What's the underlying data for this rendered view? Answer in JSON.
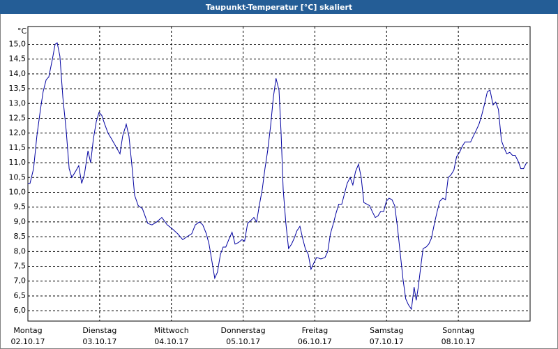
{
  "chart_data": {
    "type": "line",
    "title": "Taupunkt-Temperatur [°C] skaliert",
    "y_unit": "°C",
    "x": [
      0,
      0.7,
      1.9,
      3.0,
      4.2,
      5.1,
      6.1,
      7.0,
      8.2,
      9.1,
      9.8,
      10.7,
      11.7,
      12.8,
      13.8,
      14.7,
      15.9,
      17.0,
      18.0,
      18.9,
      20.1,
      21.0,
      21.9,
      22.9,
      23.8,
      24.7,
      25.7,
      26.8,
      28.0,
      29.4,
      30.8,
      31.7,
      32.9,
      33.8,
      34.8,
      35.7,
      36.9,
      38.3,
      39.2,
      40.1,
      41.5,
      43.1,
      44.8,
      46.6,
      48.5,
      50.1,
      51.8,
      53.2,
      54.8,
      56.0,
      57.4,
      58.5,
      59.7,
      60.6,
      61.6,
      62.5,
      63.4,
      64.4,
      65.3,
      66.2,
      67.4,
      68.3,
      69.3,
      70.4,
      71.6,
      72.5,
      73.5,
      74.6,
      75.6,
      76.5,
      77.4,
      78.4,
      79.3,
      80.2,
      81.2,
      82.1,
      83.0,
      84.0,
      84.7,
      85.4,
      86.3,
      87.2,
      88.2,
      89.1,
      90.0,
      91.0,
      91.9,
      92.8,
      93.8,
      94.7,
      95.6,
      96.6,
      98.0,
      99.4,
      100.3,
      101.2,
      102.2,
      103.1,
      104.0,
      105.0,
      105.9,
      106.8,
      107.8,
      108.7,
      109.6,
      110.6,
      111.5,
      112.4,
      113.4,
      114.3,
      115.2,
      116.2,
      117.1,
      118.0,
      119.0,
      119.9,
      120.8,
      121.8,
      122.7,
      123.6,
      124.6,
      125.5,
      126.4,
      127.3,
      128.3,
      129.2,
      129.9,
      130.6,
      131.5,
      132.2,
      133.2,
      134.1,
      135.0,
      136.0,
      136.9,
      137.8,
      138.8,
      139.7,
      140.6,
      141.6,
      142.5,
      143.4,
      144.4,
      145.3,
      146.2,
      147.2,
      148.1,
      149.0,
      150.0,
      150.9,
      151.8,
      152.8,
      153.7,
      154.6,
      155.6,
      156.5,
      157.4,
      158.4,
      159.3,
      160.2,
      161.2,
      162.1,
      163.0,
      164.0,
      164.9,
      165.8,
      166.8
    ],
    "series": [
      {
        "color": "#0000a0",
        "values": [
          10.3,
          10.3,
          10.8,
          11.9,
          12.8,
          13.4,
          13.8,
          13.9,
          14.5,
          15.0,
          15.05,
          14.6,
          13.2,
          12.1,
          10.8,
          10.5,
          10.7,
          10.9,
          10.3,
          10.6,
          11.4,
          11.0,
          11.8,
          12.4,
          12.7,
          12.6,
          12.3,
          12.0,
          11.8,
          11.55,
          11.3,
          11.9,
          12.3,
          11.9,
          10.9,
          9.9,
          9.55,
          9.45,
          9.2,
          8.95,
          8.9,
          9.0,
          9.15,
          8.9,
          8.75,
          8.6,
          8.4,
          8.5,
          8.6,
          8.9,
          9.0,
          8.9,
          8.6,
          8.25,
          7.65,
          7.1,
          7.3,
          7.9,
          8.15,
          8.15,
          8.45,
          8.65,
          8.25,
          8.3,
          8.4,
          8.35,
          8.95,
          9.05,
          9.15,
          9.0,
          9.55,
          10.1,
          10.8,
          11.4,
          12.25,
          13.2,
          13.85,
          13.45,
          12.0,
          10.1,
          8.95,
          8.1,
          8.25,
          8.45,
          8.7,
          8.85,
          8.45,
          8.1,
          7.9,
          7.4,
          7.6,
          7.8,
          7.75,
          7.8,
          8.0,
          8.6,
          8.95,
          9.3,
          9.6,
          9.6,
          9.95,
          10.3,
          10.5,
          10.25,
          10.7,
          10.95,
          10.5,
          9.65,
          9.6,
          9.55,
          9.35,
          9.15,
          9.2,
          9.35,
          9.35,
          9.7,
          9.8,
          9.75,
          9.55,
          8.85,
          7.9,
          7.05,
          6.4,
          6.2,
          6.05,
          6.8,
          6.35,
          6.8,
          7.55,
          8.1,
          8.15,
          8.25,
          8.45,
          8.95,
          9.35,
          9.7,
          9.8,
          9.75,
          10.5,
          10.6,
          10.75,
          11.2,
          11.35,
          11.55,
          11.7,
          11.7,
          11.7,
          11.9,
          12.1,
          12.3,
          12.6,
          13.0,
          13.4,
          13.45,
          12.95,
          13.05,
          12.8,
          11.75,
          11.5,
          11.3,
          11.35,
          11.25,
          11.25,
          11.05,
          10.8,
          10.8,
          11.0
        ]
      }
    ],
    "xlim": [
      0,
      168
    ],
    "xticks": [
      {
        "value": 0,
        "label": "Montag",
        "date": "02.10.17"
      },
      {
        "value": 24,
        "label": "Dienstag",
        "date": "03.10.17"
      },
      {
        "value": 48,
        "label": "Mittwoch",
        "date": "04.10.17"
      },
      {
        "value": 72,
        "label": "Donnerstag",
        "date": "05.10.17"
      },
      {
        "value": 96,
        "label": "Freitag",
        "date": "06.10.17"
      },
      {
        "value": 120,
        "label": "Samstag",
        "date": "07.10.17"
      },
      {
        "value": 144,
        "label": "Sonntag",
        "date": "08.10.17"
      }
    ],
    "ylim": [
      5.65,
      15.6
    ],
    "yticks": [
      {
        "value": 6,
        "label": "6,0"
      },
      {
        "value": 6.5,
        "label": "6,5"
      },
      {
        "value": 7,
        "label": "7,0"
      },
      {
        "value": 7.5,
        "label": "7,5"
      },
      {
        "value": 8,
        "label": "8,0"
      },
      {
        "value": 8.5,
        "label": "8,5"
      },
      {
        "value": 9,
        "label": "9,0"
      },
      {
        "value": 9.5,
        "label": "9,5"
      },
      {
        "value": 10,
        "label": "10,0"
      },
      {
        "value": 10.5,
        "label": "10,5"
      },
      {
        "value": 11,
        "label": "11,0"
      },
      {
        "value": 11.5,
        "label": "11,5"
      },
      {
        "value": 12,
        "label": "12,0"
      },
      {
        "value": 12.5,
        "label": "12,5"
      },
      {
        "value": 13,
        "label": "13,0"
      },
      {
        "value": 13.5,
        "label": "13,5"
      },
      {
        "value": 14,
        "label": "14,0"
      },
      {
        "value": 14.5,
        "label": "14,5"
      },
      {
        "value": 15,
        "label": "15,0"
      }
    ],
    "grid": true
  }
}
